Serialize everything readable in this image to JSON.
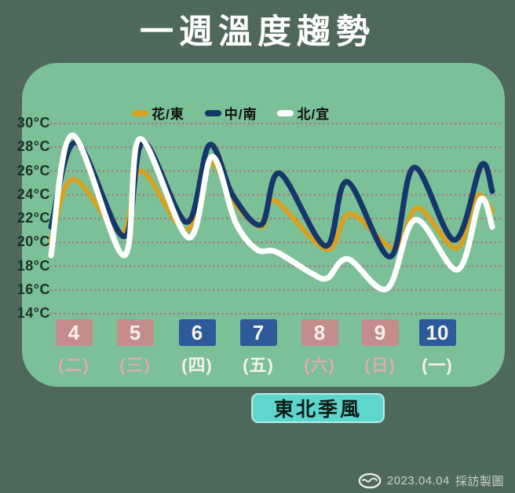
{
  "title": "一週溫度趨勢",
  "annotation": {
    "label": "東北季風"
  },
  "credit": {
    "date": "2023.04.04",
    "label": "採訪製圖",
    "logo": "news-agency-oval-logo"
  },
  "colors": {
    "background": "#4e685b",
    "panel": "#7bc096",
    "gridline": "#b06e7c",
    "axis_text": "#1d3028",
    "badge": "#5dd6cd",
    "date_box_pink": "#c58c8c",
    "date_box_blue": "#2e599a",
    "weekday_pink": "#dcaeab",
    "weekday_white": "#f6f2ea"
  },
  "y_axis": {
    "unit": "°C",
    "min": 14,
    "max": 30,
    "step": 2,
    "tick_labels": [
      "30°C",
      "28°C",
      "26°C",
      "24°C",
      "22°C",
      "20°C",
      "18°C",
      "16°C",
      "14°C"
    ]
  },
  "days": [
    {
      "date": "4",
      "weekday": "(二)",
      "box_color": "#c58c8c",
      "weekday_color": "#dcaeab"
    },
    {
      "date": "5",
      "weekday": "(三)",
      "box_color": "#c58c8c",
      "weekday_color": "#dcaeab"
    },
    {
      "date": "6",
      "weekday": "(四)",
      "box_color": "#2e599a",
      "weekday_color": "#f6f2ea"
    },
    {
      "date": "7",
      "weekday": "(五)",
      "box_color": "#2e599a",
      "weekday_color": "#f6f2ea"
    },
    {
      "date": "8",
      "weekday": "(六)",
      "box_color": "#c58c8c",
      "weekday_color": "#dcaeab"
    },
    {
      "date": "9",
      "weekday": "(日)",
      "box_color": "#c58c8c",
      "weekday_color": "#dcaeab"
    },
    {
      "date": "10",
      "weekday": "(一)",
      "box_color": "#2e599a",
      "weekday_color": "#f6f2ea"
    }
  ],
  "chart_data": {
    "type": "line",
    "title": "一週溫度趨勢",
    "x_categories": [
      "4 (二)",
      "5 (三)",
      "6 (四)",
      "7 (五)",
      "8 (六)",
      "9 (日)",
      "10 (一)"
    ],
    "x_axis_note": "points are [fraction_of_week_axis_0to1, temperature_C]; each day shows a night low and afternoon high",
    "ylim": [
      14,
      30
    ],
    "y_unit": "°C",
    "grid": "horizontal dotted every 2°C",
    "legend_position": "top",
    "series": [
      {
        "name": "花/東",
        "color": "#d7a11f",
        "points": [
          [
            0.0,
            20.1
          ],
          [
            0.048,
            25.3
          ],
          [
            0.155,
            20.8
          ],
          [
            0.197,
            26.0
          ],
          [
            0.297,
            21.0
          ],
          [
            0.35,
            26.6
          ],
          [
            0.4,
            23.4
          ],
          [
            0.462,
            21.3
          ],
          [
            0.491,
            23.5
          ],
          [
            0.605,
            19.4
          ],
          [
            0.657,
            22.4
          ],
          [
            0.755,
            19.5
          ],
          [
            0.805,
            22.9
          ],
          [
            0.89,
            19.5
          ],
          [
            0.934,
            23.9
          ],
          [
            0.969,
            22.6
          ]
        ]
      },
      {
        "name": "中/南",
        "color": "#16376b",
        "points": [
          [
            0.0,
            21.3
          ],
          [
            0.055,
            28.4
          ],
          [
            0.16,
            20.5
          ],
          [
            0.202,
            28.4
          ],
          [
            0.298,
            21.7
          ],
          [
            0.348,
            28.2
          ],
          [
            0.4,
            23.9
          ],
          [
            0.462,
            21.5
          ],
          [
            0.502,
            25.8
          ],
          [
            0.603,
            19.7
          ],
          [
            0.65,
            25.1
          ],
          [
            0.745,
            18.8
          ],
          [
            0.797,
            26.3
          ],
          [
            0.886,
            20.2
          ],
          [
            0.945,
            26.5
          ],
          [
            0.969,
            24.3
          ]
        ]
      },
      {
        "name": "北/宜",
        "color": "#ffffff",
        "points": [
          [
            0.0,
            18.9
          ],
          [
            0.047,
            29.0
          ],
          [
            0.16,
            18.9
          ],
          [
            0.195,
            28.7
          ],
          [
            0.302,
            20.4
          ],
          [
            0.353,
            27.2
          ],
          [
            0.405,
            21.7
          ],
          [
            0.452,
            19.4
          ],
          [
            0.495,
            19.2
          ],
          [
            0.572,
            17.4
          ],
          [
            0.607,
            17.0
          ],
          [
            0.652,
            18.6
          ],
          [
            0.738,
            16.1
          ],
          [
            0.8,
            21.9
          ],
          [
            0.893,
            17.7
          ],
          [
            0.943,
            23.6
          ],
          [
            0.969,
            21.3
          ]
        ]
      }
    ]
  }
}
